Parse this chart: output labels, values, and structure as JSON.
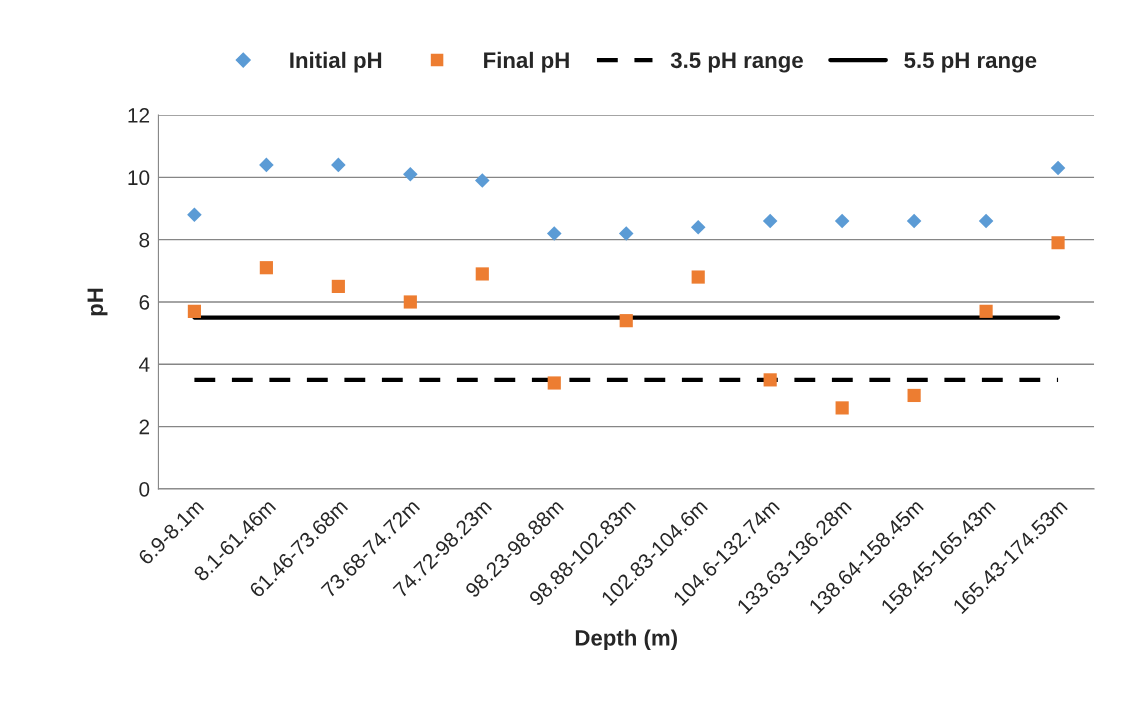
{
  "chart_data": {
    "type": "scatter",
    "xlabel": "Depth (m)",
    "ylabel": "pH",
    "categories": [
      "6.9-8.1m",
      "8.1-61.46m",
      "61.46-73.68m",
      "73.68-74.72m",
      "74.72-98.23m",
      "98.23-98.88m",
      "98.88-102.83m",
      "102.83-104.6m",
      "104.6-132.74m",
      "133.63-136.28m",
      "138.64-158.45m",
      "158.45-165.43m",
      "165.43-174.53m"
    ],
    "series": [
      {
        "name": "Initial pH",
        "marker": "diamond",
        "color": "#5b9bd5",
        "values": [
          8.8,
          10.4,
          10.4,
          10.1,
          9.9,
          8.2,
          8.2,
          8.4,
          8.6,
          8.6,
          8.6,
          8.6,
          10.3
        ]
      },
      {
        "name": "Final pH",
        "marker": "square",
        "color": "#ed7d31",
        "values": [
          5.7,
          7.1,
          6.5,
          6.0,
          6.9,
          3.4,
          5.4,
          6.8,
          3.5,
          2.6,
          3.0,
          5.7,
          7.9
        ]
      },
      {
        "name": "3.5 pH range",
        "type": "line",
        "line_style": "dashed",
        "color": "#000000",
        "values": [
          3.5,
          3.5,
          3.5,
          3.5,
          3.5,
          3.5,
          3.5,
          3.5,
          3.5,
          3.5,
          3.5,
          3.5,
          3.5
        ]
      },
      {
        "name": "5.5 pH range",
        "type": "line",
        "line_style": "solid",
        "color": "#000000",
        "values": [
          5.5,
          5.5,
          5.5,
          5.5,
          5.5,
          5.5,
          5.5,
          5.5,
          5.5,
          5.5,
          5.5,
          5.5,
          5.5
        ]
      }
    ],
    "ylim": [
      0,
      12
    ],
    "yticks": [
      0,
      2,
      4,
      6,
      8,
      10,
      12
    ],
    "grid": "y",
    "legend": "top"
  }
}
